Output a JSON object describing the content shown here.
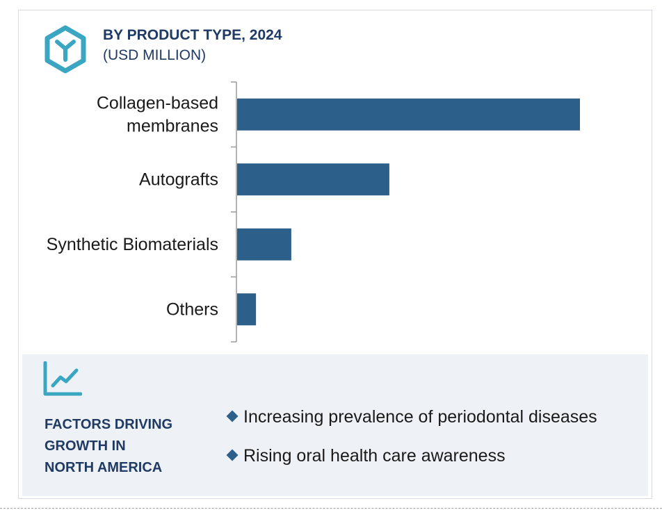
{
  "header": {
    "title": "BY PRODUCT TYPE, 2024",
    "subtitle": "(USD MILLION)",
    "logo_icon": "hexagon-y-icon"
  },
  "colors": {
    "bar": "#2c5f8a",
    "title": "#1f3a64",
    "accent": "#3aa6c2",
    "panel_bg": "#eef2f6"
  },
  "chart_data": {
    "type": "bar",
    "orientation": "horizontal",
    "title": "BY PRODUCT TYPE, 2024",
    "subtitle": "(USD MILLION)",
    "categories": [
      "Collagen-based membranes",
      "Autografts",
      "Synthetic Biomaterials",
      "Others"
    ],
    "category_lines": [
      [
        "Collagen-based",
        "membranes"
      ],
      [
        "Autografts"
      ],
      [
        "Synthetic Biomaterials"
      ],
      [
        "Others"
      ]
    ],
    "values": [
      100,
      44.4,
      15.8,
      5.5
    ],
    "value_scale": "relative (no axis values shown)",
    "xlim": [
      0,
      100
    ],
    "grid": false,
    "legend": "none"
  },
  "factors": {
    "icon": "trend-line-chart-icon",
    "title_lines": [
      "FACTORS DRIVING",
      "GROWTH IN",
      "NORTH AMERICA"
    ],
    "items": [
      "Increasing prevalence of periodontal diseases",
      "Rising oral health care awareness"
    ]
  }
}
